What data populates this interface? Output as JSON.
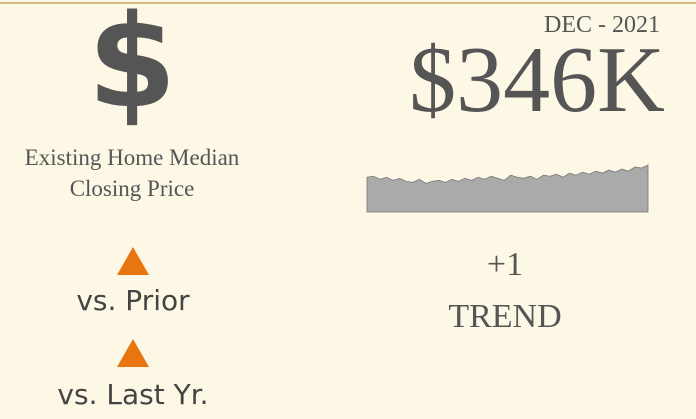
{
  "date": "DEC - 2021",
  "value": "$346K",
  "icon": "$",
  "label_lines": [
    "Existing Home Median",
    "Closing Price"
  ],
  "comparisons": [
    "vs. Prior",
    "vs. Last Yr."
  ],
  "trend": {
    "value": "+1",
    "label": "TREND"
  },
  "sparkline": {
    "type": "area",
    "color": "#aaaaaa",
    "values": [
      34,
      35,
      32,
      34,
      31,
      33,
      30,
      29,
      32,
      28,
      30,
      31,
      29,
      32,
      30,
      33,
      31,
      34,
      32,
      35,
      33,
      31,
      36,
      34,
      33,
      35,
      32,
      36,
      35,
      37,
      34,
      38,
      36,
      39,
      37,
      40,
      38,
      41,
      39,
      42,
      40,
      44,
      43,
      46
    ]
  }
}
